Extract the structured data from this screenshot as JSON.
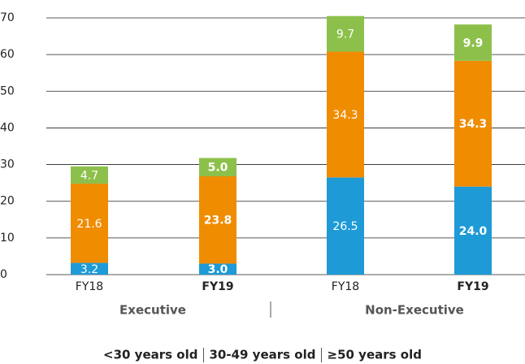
{
  "chart_data": {
    "type": "stacked_bar",
    "categories": [
      "FY18",
      "FY19",
      "FY18",
      "FY19"
    ],
    "groups": [
      "Executive",
      "Non-Executive"
    ],
    "series": [
      {
        "name": "<30 years old",
        "color": "#1e9ad6",
        "values": [
          3.2,
          3.0,
          26.5,
          24.0
        ],
        "value_labels": [
          "3.2",
          "3.0",
          "26.5",
          "24.0"
        ]
      },
      {
        "name": "30-49 years old",
        "color": "#f08c00",
        "values": [
          21.6,
          23.8,
          34.3,
          34.3
        ],
        "value_labels": [
          "21.6",
          "23.8",
          "34.3",
          "34.3"
        ]
      },
      {
        "name": "≥50 years old",
        "color": "#8cc04b",
        "values": [
          4.7,
          5.0,
          9.7,
          9.9
        ],
        "value_labels": [
          "4.7",
          "5.0",
          "9.7",
          "9.9"
        ]
      }
    ],
    "ylim": [
      0,
      70
    ],
    "yticks": [
      0,
      10,
      20,
      30,
      40,
      50,
      60,
      70
    ],
    "grid": true
  }
}
